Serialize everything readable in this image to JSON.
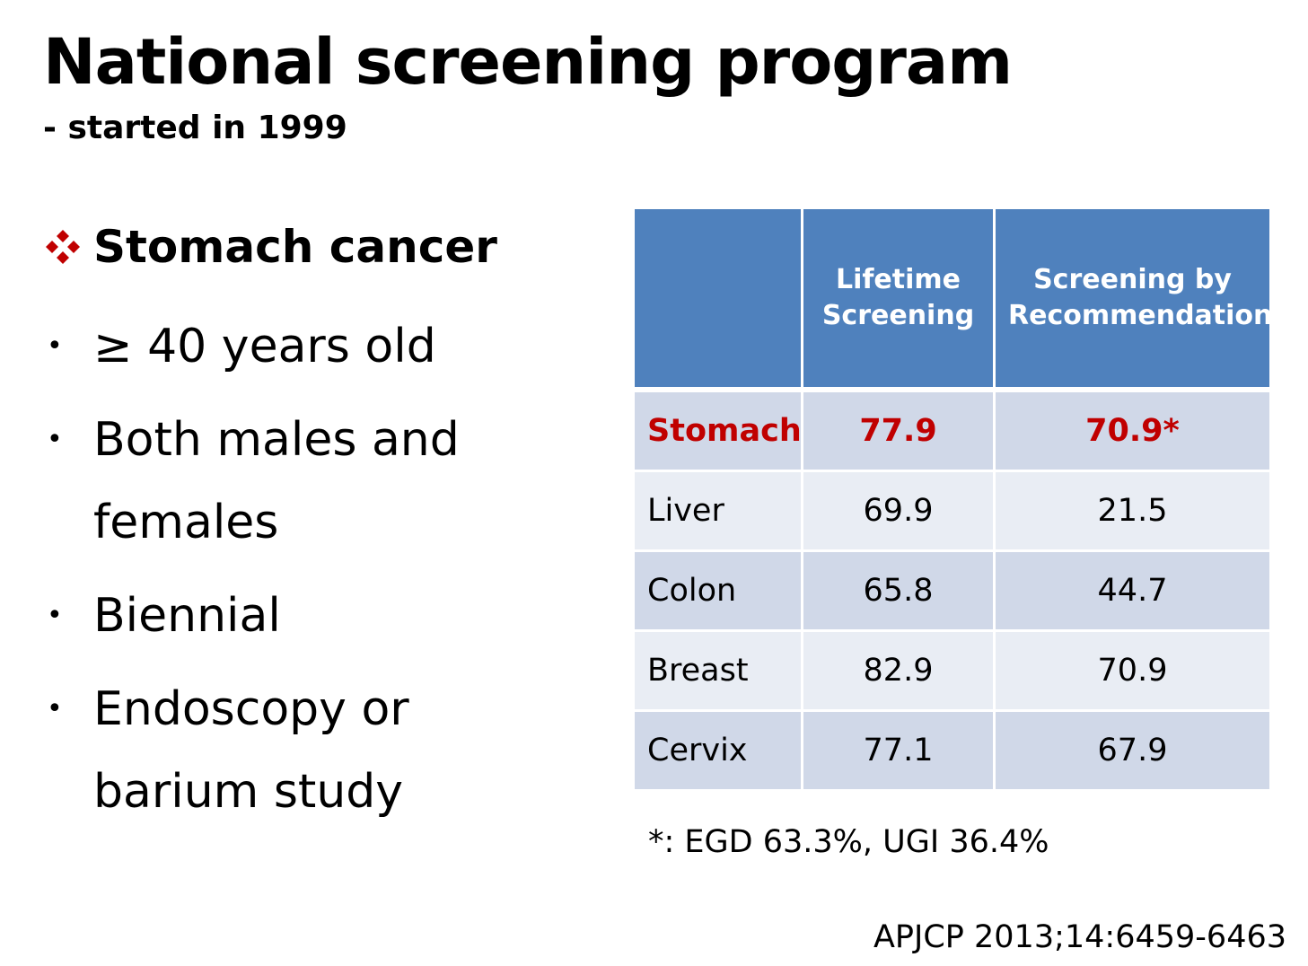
{
  "slide": {
    "title": "National screening program",
    "subtitle": "- started in 1999"
  },
  "left_panel": {
    "heading": "Stomach cancer",
    "heading_icon": "diamond-bullet-icon",
    "accent_color": "#c00000",
    "bullets": [
      "≥ 40 years old",
      "Both males and females",
      "Biennial",
      "Endoscopy or barium study"
    ]
  },
  "table": {
    "header_color": "#4f81bd",
    "headers": [
      "",
      "Lifetime Screening",
      "Screening by Recommendation"
    ],
    "rows": [
      {
        "organ": "Stomach",
        "lifetime": "77.9",
        "recommendation": "70.9*",
        "highlight": true
      },
      {
        "organ": "Liver",
        "lifetime": "69.9",
        "recommendation": "21.5"
      },
      {
        "organ": "Colon",
        "lifetime": "65.8",
        "recommendation": "44.7"
      },
      {
        "organ": "Breast",
        "lifetime": "82.9",
        "recommendation": "70.9"
      },
      {
        "organ": "Cervix",
        "lifetime": "77.1",
        "recommendation": "67.9"
      }
    ]
  },
  "footnote": "*: EGD 63.3%, UGI 36.4%",
  "citation": "APJCP 2013;14:6459-6463"
}
